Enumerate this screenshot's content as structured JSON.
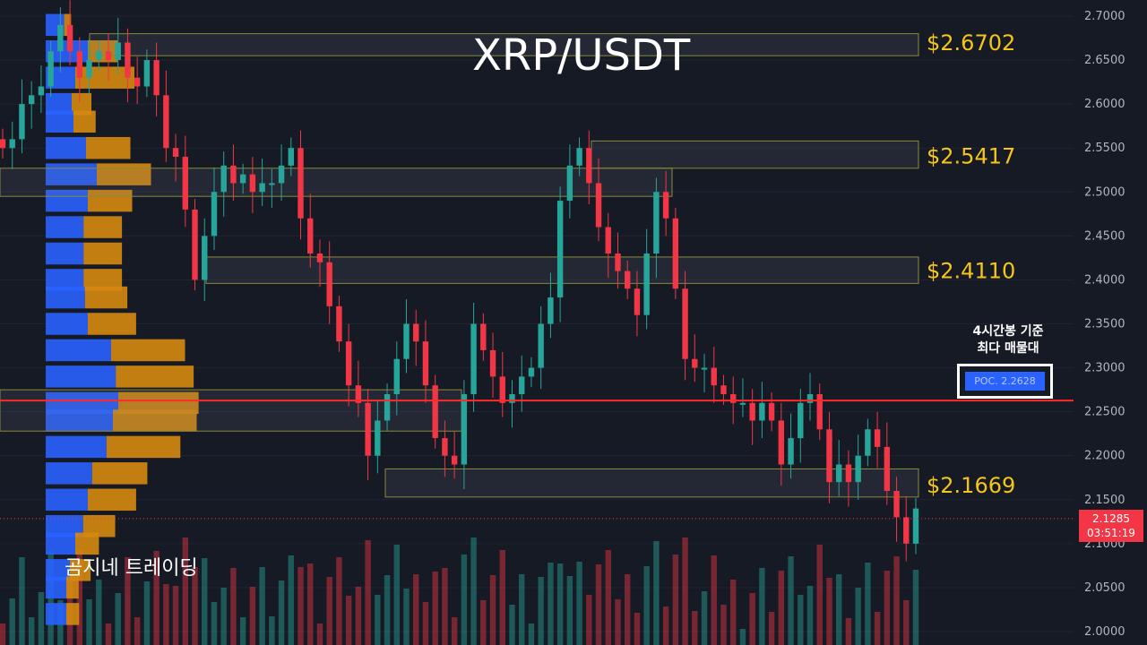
{
  "title": "XRP/USDT",
  "watermark": "곰지네 트레이딩",
  "poc": {
    "caption_line1": "4시간봉 기준",
    "caption_line2": "최다 매물대",
    "label": "POC. 2.2628",
    "value": 2.2628
  },
  "current_price": {
    "price": "2.1285",
    "countdown": "03:51:19",
    "value": 2.1285
  },
  "colors": {
    "background": "#161a25",
    "up": "#26a69a",
    "down": "#f23645",
    "level_label": "#f5c518",
    "profile_blue": "#2962ff",
    "profile_orange": "#d68910",
    "poc_line": "#ff2a2a"
  },
  "chart_data": {
    "type": "candlestick",
    "title": "XRP/USDT",
    "y_axis": {
      "ylim": [
        2.0,
        2.7
      ],
      "ticks": [
        "2.7000",
        "2.6500",
        "2.6000",
        "2.5500",
        "2.5000",
        "2.4500",
        "2.4000",
        "2.3500",
        "2.3000",
        "2.2500",
        "2.2000",
        "2.1500",
        "2.1000",
        "2.0500",
        "2.0000"
      ]
    },
    "levels": [
      {
        "label": "$2.6702",
        "value": 2.6702
      },
      {
        "label": "$2.5417",
        "value": 2.5417
      },
      {
        "label": "$2.4110",
        "value": 2.411
      },
      {
        "label": "$2.1669",
        "value": 2.1669
      }
    ],
    "closes": [
      2.55,
      2.56,
      2.6,
      2.61,
      2.62,
      2.66,
      2.69,
      2.66,
      2.63,
      2.65,
      2.66,
      2.65,
      2.67,
      2.63,
      2.62,
      2.65,
      2.61,
      2.55,
      2.54,
      2.48,
      2.4,
      2.45,
      2.5,
      2.53,
      2.51,
      2.52,
      2.5,
      2.51,
      2.51,
      2.53,
      2.55,
      2.47,
      2.43,
      2.42,
      2.37,
      2.33,
      2.28,
      2.26,
      2.2,
      2.24,
      2.27,
      2.31,
      2.35,
      2.33,
      2.28,
      2.22,
      2.2,
      2.19,
      2.27,
      2.35,
      2.32,
      2.29,
      2.26,
      2.27,
      2.29,
      2.3,
      2.35,
      2.38,
      2.49,
      2.53,
      2.55,
      2.51,
      2.46,
      2.43,
      2.41,
      2.39,
      2.36,
      2.43,
      2.5,
      2.47,
      2.39,
      2.31,
      2.3,
      2.3,
      2.28,
      2.27,
      2.26,
      2.26,
      2.24,
      2.26,
      2.24,
      2.19,
      2.22,
      2.26,
      2.27,
      2.23,
      2.17,
      2.19,
      2.17,
      2.2,
      2.23,
      2.21,
      2.16,
      2.13,
      2.1,
      2.14
    ],
    "profile_rows": [
      {
        "price": 2.69,
        "buy": 14,
        "sell": 14
      },
      {
        "price": 2.66,
        "buy": 80,
        "sell": 60
      },
      {
        "price": 2.63,
        "buy": 45,
        "sell": 120
      },
      {
        "price": 2.6,
        "buy": 35,
        "sell": 40
      },
      {
        "price": 2.58,
        "buy": 40,
        "sell": 45
      },
      {
        "price": 2.55,
        "buy": 75,
        "sell": 90
      },
      {
        "price": 2.52,
        "buy": 105,
        "sell": 110
      },
      {
        "price": 2.49,
        "buy": 80,
        "sell": 90
      },
      {
        "price": 2.46,
        "buy": 68,
        "sell": 78
      },
      {
        "price": 2.43,
        "buy": 68,
        "sell": 78
      },
      {
        "price": 2.4,
        "buy": 68,
        "sell": 78
      },
      {
        "price": 2.38,
        "buy": 72,
        "sell": 86
      },
      {
        "price": 2.35,
        "buy": 80,
        "sell": 98
      },
      {
        "price": 2.32,
        "buy": 145,
        "sell": 150
      },
      {
        "price": 2.29,
        "buy": 158,
        "sell": 158
      },
      {
        "price": 2.26,
        "buy": 165,
        "sell": 163
      },
      {
        "price": 2.24,
        "buy": 150,
        "sell": 170
      },
      {
        "price": 2.21,
        "buy": 132,
        "sell": 150
      },
      {
        "price": 2.18,
        "buy": 92,
        "sell": 112
      },
      {
        "price": 2.15,
        "buy": 80,
        "sell": 98
      },
      {
        "price": 2.12,
        "buy": 67,
        "sell": 65
      },
      {
        "price": 2.1,
        "buy": 45,
        "sell": 48
      },
      {
        "price": 2.07,
        "buy": 30,
        "sell": 42
      },
      {
        "price": 2.05,
        "buy": 20,
        "sell": 25
      },
      {
        "price": 2.02,
        "buy": 20,
        "sell": 26
      }
    ]
  }
}
